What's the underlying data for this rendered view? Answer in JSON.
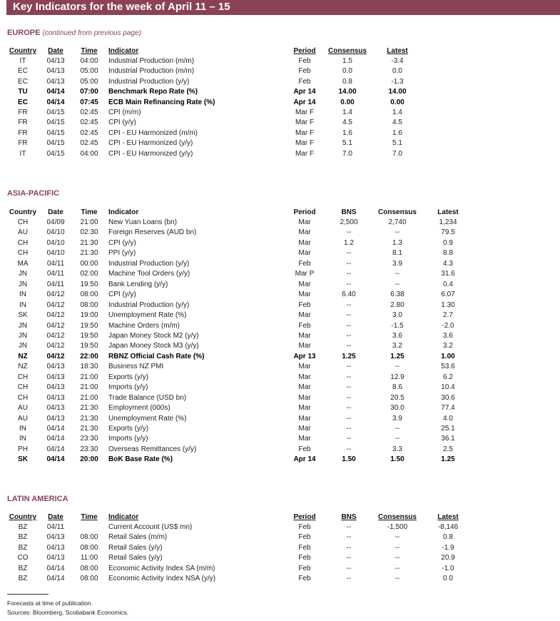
{
  "title": "Key Indicators for the week of April  11 – 15",
  "sections": [
    {
      "heading": "EUROPE",
      "subheading": "(continued from previous page)",
      "columns": [
        "Country",
        "Date",
        "Time",
        "Indicator",
        "Period",
        "Consensus",
        "Latest"
      ],
      "rows": [
        [
          "IT",
          "04/13",
          "04:00",
          "Industrial Production (m/m)",
          "Feb",
          "1.5",
          "-3.4"
        ],
        [
          "EC",
          "04/13",
          "05:00",
          "Industrial Production (m/m)",
          "Feb",
          "0.0",
          "0.0"
        ],
        [
          "EC",
          "04/13",
          "05:00",
          "Industrial Production (y/y)",
          "Feb",
          "0.8",
          "-1.3"
        ],
        [
          "TU",
          "04/14",
          "07:00",
          "Benchmark Repo Rate (%)",
          "Apr 14",
          "14.00",
          "14.00"
        ],
        [
          "EC",
          "04/14",
          "07:45",
          "ECB Main Refinancing Rate (%)",
          "Apr 14",
          "0.00",
          "0.00"
        ],
        [
          "FR",
          "04/15",
          "02:45",
          "CPI (m/m)",
          "Mar F",
          "1.4",
          "1.4"
        ],
        [
          "FR",
          "04/15",
          "02:45",
          "CPI (y/y)",
          "Mar F",
          "4.5",
          "4.5"
        ],
        [
          "FR",
          "04/15",
          "02:45",
          "CPI - EU Harmonized (m/m)",
          "Mar F",
          "1.6",
          "1.6"
        ],
        [
          "FR",
          "04/15",
          "02:45",
          "CPI - EU Harmonized (y/y)",
          "Mar F",
          "5.1",
          "5.1"
        ],
        [
          "IT",
          "04/15",
          "04:00",
          "CPI - EU Harmonized (y/y)",
          "Mar F",
          "7.0",
          "7.0"
        ]
      ],
      "bold_rows": [
        3,
        4
      ]
    },
    {
      "heading": "ASIA-PACIFIC",
      "columns": [
        "Country",
        "Date",
        "Time",
        "Indicator",
        "Period",
        "BNS",
        "Consensus",
        "Latest"
      ],
      "rows": [
        [
          "CH",
          "04/09",
          "21:00",
          "New Yuan Loans (bn)",
          "Mar",
          "2,500",
          "2,740",
          "1,234"
        ],
        [
          "AU",
          "04/10",
          "02:30",
          "Foreign Reserves (AUD bn)",
          "Mar",
          "--",
          "--",
          "79.5"
        ],
        [
          "CH",
          "04/10",
          "21:30",
          "CPI (y/y)",
          "Mar",
          "1.2",
          "1.3",
          "0.9"
        ],
        [
          "CH",
          "04/10",
          "21:30",
          "PPI (y/y)",
          "Mar",
          "--",
          "8.1",
          "8.8"
        ],
        [
          "MA",
          "04/11",
          "00:00",
          "Industrial Production (y/y)",
          "Feb",
          "--",
          "3.9",
          "4.3"
        ],
        [
          "JN",
          "04/11",
          "02:00",
          "Machine Tool Orders (y/y)",
          "Mar P",
          "--",
          "--",
          "31.6"
        ],
        [
          "JN",
          "04/11",
          "19:50",
          "Bank Lending (y/y)",
          "Mar",
          "--",
          "--",
          "0.4"
        ],
        [
          "IN",
          "04/12",
          "08:00",
          "CPI (y/y)",
          "Mar",
          "6.40",
          "6.38",
          "6.07"
        ],
        [
          "IN",
          "04/12",
          "08:00",
          "Industrial Production (y/y)",
          "Feb",
          "--",
          "2.80",
          "1.30"
        ],
        [
          "SK",
          "04/12",
          "19:00",
          "Unemployment Rate (%)",
          "Mar",
          "--",
          "3.0",
          "2.7"
        ],
        [
          "JN",
          "04/12",
          "19:50",
          "Machine Orders (m/m)",
          "Feb",
          "--",
          "-1.5",
          "-2.0"
        ],
        [
          "JN",
          "04/12",
          "19:50",
          "Japan Money Stock M2 (y/y)",
          "Mar",
          "--",
          "3.6",
          "3.6"
        ],
        [
          "JN",
          "04/12",
          "19:50",
          "Japan Money Stock M3 (y/y)",
          "Mar",
          "--",
          "3.2",
          "3.2"
        ],
        [
          "NZ",
          "04/12",
          "22:00",
          "RBNZ Official Cash Rate (%)",
          "Apr 13",
          "1.25",
          "1.25",
          "1.00"
        ],
        [
          "NZ",
          "04/13",
          "18:30",
          "Business NZ PMI",
          "Mar",
          "--",
          "--",
          "53.6"
        ],
        [
          "CH",
          "04/13",
          "21:00",
          "Exports (y/y)",
          "Mar",
          "--",
          "12.9",
          "6.2"
        ],
        [
          "CH",
          "04/13",
          "21:00",
          "Imports (y/y)",
          "Mar",
          "--",
          "8.6",
          "10.4"
        ],
        [
          "CH",
          "04/13",
          "21:00",
          "Trade Balance (USD bn)",
          "Mar",
          "--",
          "20.5",
          "30.6"
        ],
        [
          "AU",
          "04/13",
          "21:30",
          "Employment (000s)",
          "Mar",
          "--",
          "30.0",
          "77.4"
        ],
        [
          "AU",
          "04/13",
          "21:30",
          "Unemployment Rate (%)",
          "Mar",
          "--",
          "3.9",
          "4.0"
        ],
        [
          "IN",
          "04/14",
          "21:30",
          "Exports (y/y)",
          "Mar",
          "--",
          "--",
          "25.1"
        ],
        [
          "IN",
          "04/14",
          "23:30",
          "Imports (y/y)",
          "Mar",
          "--",
          "--",
          "36.1"
        ],
        [
          "PH",
          "04/14",
          "23:30",
          "Overseas Remittances (y/y)",
          "Feb",
          "--",
          "3.3",
          "2.5"
        ],
        [
          "SK",
          "04/14",
          "20:00",
          "BoK Base Rate (%)",
          "Apr 14",
          "1.50",
          "1.50",
          "1.25"
        ]
      ],
      "bold_rows": [
        13,
        23
      ]
    },
    {
      "heading": "LATIN AMERICA",
      "columns": [
        "Country",
        "Date",
        "Time",
        "Indicator",
        "Period",
        "BNS",
        "Consensus",
        "Latest"
      ],
      "rows": [
        [
          "BZ",
          "04/11",
          "",
          "Current Account (US$ mn)",
          "Feb",
          "--",
          "-1,500",
          "-8,146"
        ],
        [
          "BZ",
          "04/13",
          "08:00",
          "Retail Sales (m/m)",
          "Feb",
          "--",
          "--",
          "0.8"
        ],
        [
          "BZ",
          "04/13",
          "08:00",
          "Retail Sales (y/y)",
          "Feb",
          "--",
          "--",
          "-1.9"
        ],
        [
          "CO",
          "04/13",
          "11:00",
          "Retail Sales (y/y)",
          "Feb",
          "--",
          "--",
          "20.9"
        ],
        [
          "BZ",
          "04/14",
          "08:00",
          "Economic Activity Index SA (m/m)",
          "Feb",
          "--",
          "--",
          "-1.0"
        ],
        [
          "BZ",
          "04/14",
          "08:00",
          "Economic Activity Index NSA (y/y)",
          "Feb",
          "--",
          "--",
          "0.0"
        ]
      ],
      "bold_rows": []
    }
  ],
  "footnotes": [
    "Forecasts at time of publication.",
    "Sources: Bloomberg, Scotiabank Economics."
  ]
}
